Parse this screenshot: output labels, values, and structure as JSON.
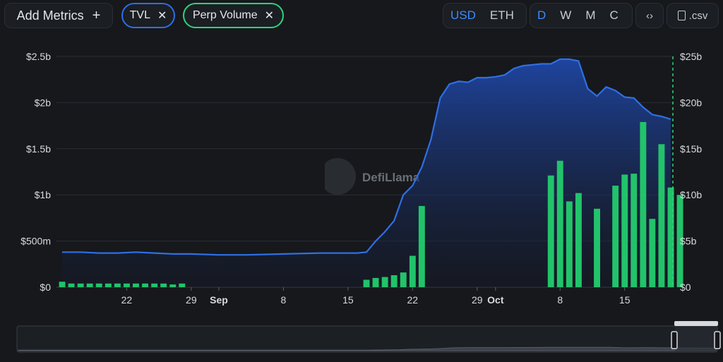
{
  "toolbar": {
    "add_metrics_label": "Add Metrics",
    "add_icon": "plus-icon",
    "metric_pills": [
      {
        "label": "TVL",
        "color": "#2f6fe4"
      },
      {
        "label": "Perp Volume",
        "color": "#2ed47a"
      }
    ],
    "currency_options": [
      "USD",
      "ETH"
    ],
    "currency_selected": "USD",
    "period_options": [
      "D",
      "W",
      "M",
      "C"
    ],
    "period_selected": "D",
    "embed_icon": "code-icon",
    "csv_label": ".csv",
    "csv_icon": "file-download-icon"
  },
  "watermark": "DefiLlama",
  "colors": {
    "tvl_line": "#2f6fe4",
    "tvl_fill": "#1e46a8",
    "volume_bar": "#22c36a",
    "background": "#16181c"
  },
  "chart_data": {
    "type": "line+bar",
    "x_tick_labels": [
      "22",
      "29",
      "Sep",
      "8",
      "15",
      "22",
      "29",
      "Oct",
      "8",
      "15"
    ],
    "x_tick_label_dates": [
      "2024-08-22",
      "2024-08-29",
      "2024-09-01",
      "2024-09-08",
      "2024-09-15",
      "2024-09-22",
      "2024-09-29",
      "2024-10-01",
      "2024-10-08",
      "2024-10-15"
    ],
    "x_range": [
      "2024-08-15",
      "2024-10-20"
    ],
    "left_axis": {
      "ticks": [
        "$0",
        "$500m",
        "$1b",
        "$1.5b",
        "$2b",
        "$2.5b"
      ],
      "tick_values": [
        0,
        0.5,
        1,
        1.5,
        2,
        2.5
      ],
      "unit": "USD billions",
      "range": [
        0,
        2.5
      ]
    },
    "right_axis": {
      "ticks": [
        "$0",
        "$5b",
        "$10b",
        "$15b",
        "$20b",
        "$25b"
      ],
      "tick_values": [
        0,
        5,
        10,
        15,
        20,
        25
      ],
      "unit": "USD billions",
      "range": [
        0,
        25
      ]
    },
    "grid": true,
    "series": [
      {
        "name": "TVL",
        "type": "area",
        "axis": "left",
        "values": [
          [
            "2024-08-15",
            0.38
          ],
          [
            "2024-08-17",
            0.38
          ],
          [
            "2024-08-19",
            0.37
          ],
          [
            "2024-08-21",
            0.37
          ],
          [
            "2024-08-23",
            0.38
          ],
          [
            "2024-08-25",
            0.37
          ],
          [
            "2024-08-27",
            0.36
          ],
          [
            "2024-08-29",
            0.36
          ],
          [
            "2024-09-01",
            0.35
          ],
          [
            "2024-09-04",
            0.35
          ],
          [
            "2024-09-08",
            0.36
          ],
          [
            "2024-09-12",
            0.37
          ],
          [
            "2024-09-16",
            0.37
          ],
          [
            "2024-09-17",
            0.38
          ],
          [
            "2024-09-18",
            0.5
          ],
          [
            "2024-09-19",
            0.6
          ],
          [
            "2024-09-20",
            0.72
          ],
          [
            "2024-09-21",
            1.0
          ],
          [
            "2024-09-22",
            1.1
          ],
          [
            "2024-09-23",
            1.3
          ],
          [
            "2024-09-24",
            1.6
          ],
          [
            "2024-09-25",
            2.05
          ],
          [
            "2024-09-26",
            2.2
          ],
          [
            "2024-09-27",
            2.23
          ],
          [
            "2024-09-28",
            2.22
          ],
          [
            "2024-09-29",
            2.27
          ],
          [
            "2024-09-30",
            2.27
          ],
          [
            "2024-10-01",
            2.28
          ],
          [
            "2024-10-02",
            2.3
          ],
          [
            "2024-10-03",
            2.37
          ],
          [
            "2024-10-04",
            2.4
          ],
          [
            "2024-10-05",
            2.41
          ],
          [
            "2024-10-06",
            2.42
          ],
          [
            "2024-10-07",
            2.42
          ],
          [
            "2024-10-08",
            2.47
          ],
          [
            "2024-10-09",
            2.47
          ],
          [
            "2024-10-10",
            2.45
          ],
          [
            "2024-10-11",
            2.15
          ],
          [
            "2024-10-12",
            2.07
          ],
          [
            "2024-10-13",
            2.17
          ],
          [
            "2024-10-14",
            2.13
          ],
          [
            "2024-10-15",
            2.06
          ],
          [
            "2024-10-16",
            2.05
          ],
          [
            "2024-10-17",
            1.95
          ],
          [
            "2024-10-18",
            1.87
          ],
          [
            "2024-10-19",
            1.85
          ],
          [
            "2024-10-20",
            1.82
          ]
        ]
      },
      {
        "name": "Perp Volume",
        "type": "bar",
        "axis": "right",
        "values": [
          [
            "2024-08-15",
            0.6
          ],
          [
            "2024-08-16",
            0.4
          ],
          [
            "2024-08-17",
            0.4
          ],
          [
            "2024-08-18",
            0.4
          ],
          [
            "2024-08-19",
            0.4
          ],
          [
            "2024-08-20",
            0.4
          ],
          [
            "2024-08-21",
            0.4
          ],
          [
            "2024-08-22",
            0.4
          ],
          [
            "2024-08-23",
            0.4
          ],
          [
            "2024-08-24",
            0.4
          ],
          [
            "2024-08-25",
            0.4
          ],
          [
            "2024-08-26",
            0.4
          ],
          [
            "2024-08-27",
            0.3
          ],
          [
            "2024-08-28",
            0.4
          ],
          [
            "2024-09-17",
            0.8
          ],
          [
            "2024-09-18",
            1.0
          ],
          [
            "2024-09-19",
            1.1
          ],
          [
            "2024-09-20",
            1.3
          ],
          [
            "2024-09-21",
            1.6
          ],
          [
            "2024-09-22",
            3.4
          ],
          [
            "2024-09-23",
            8.8
          ],
          [
            "2024-10-07",
            12.1
          ],
          [
            "2024-10-08",
            13.7
          ],
          [
            "2024-10-09",
            9.3
          ],
          [
            "2024-10-10",
            10.2
          ],
          [
            "2024-10-12",
            8.5
          ],
          [
            "2024-10-14",
            11.0
          ],
          [
            "2024-10-15",
            12.2
          ],
          [
            "2024-10-16",
            12.3
          ],
          [
            "2024-10-17",
            17.9
          ],
          [
            "2024-10-18",
            7.4
          ],
          [
            "2024-10-19",
            15.5
          ],
          [
            "2024-10-20",
            10.8
          ],
          [
            "2024-10-21",
            10.0
          ]
        ]
      }
    ]
  }
}
